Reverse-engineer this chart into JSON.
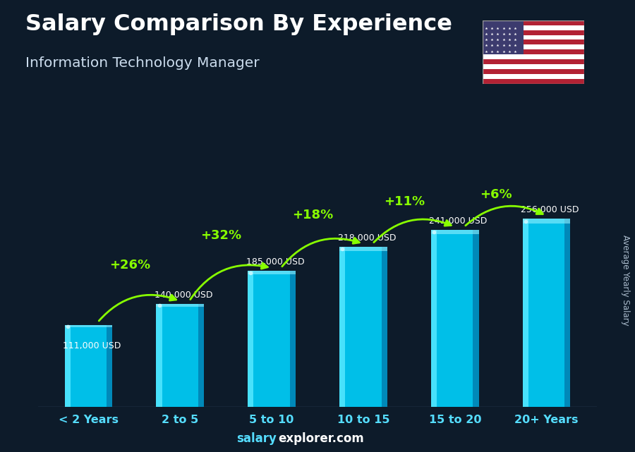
{
  "title": "Salary Comparison By Experience",
  "subtitle": "Information Technology Manager",
  "categories": [
    "< 2 Years",
    "2 to 5",
    "5 to 10",
    "10 to 15",
    "15 to 20",
    "20+ Years"
  ],
  "values": [
    111000,
    140000,
    185000,
    218000,
    241000,
    256000
  ],
  "salary_labels": [
    "111,000 USD",
    "140,000 USD",
    "185,000 USD",
    "218,000 USD",
    "241,000 USD",
    "256,000 USD"
  ],
  "pct_labels": [
    null,
    "+26%",
    "+32%",
    "+18%",
    "+11%",
    "+6%"
  ],
  "bar_face_color": "#00bfe8",
  "bar_left_color": "#00d8ff",
  "bar_right_color": "#0088b0",
  "bar_top_color": "#40e0ff",
  "background_color": "#0d1b2a",
  "title_color": "#ffffff",
  "subtitle_color": "#ccddee",
  "salary_label_color": "#ffffff",
  "pct_label_color": "#88ff00",
  "arrow_color": "#88ff00",
  "xticklabel_color": "#55ddff",
  "ylabel_text": "Average Yearly Salary",
  "footer_salary_color": "#55ddff",
  "footer_rest_color": "#ffffff",
  "ylim": [
    0,
    320000
  ],
  "bar_width": 0.52,
  "xlim": [
    -0.55,
    5.55
  ]
}
